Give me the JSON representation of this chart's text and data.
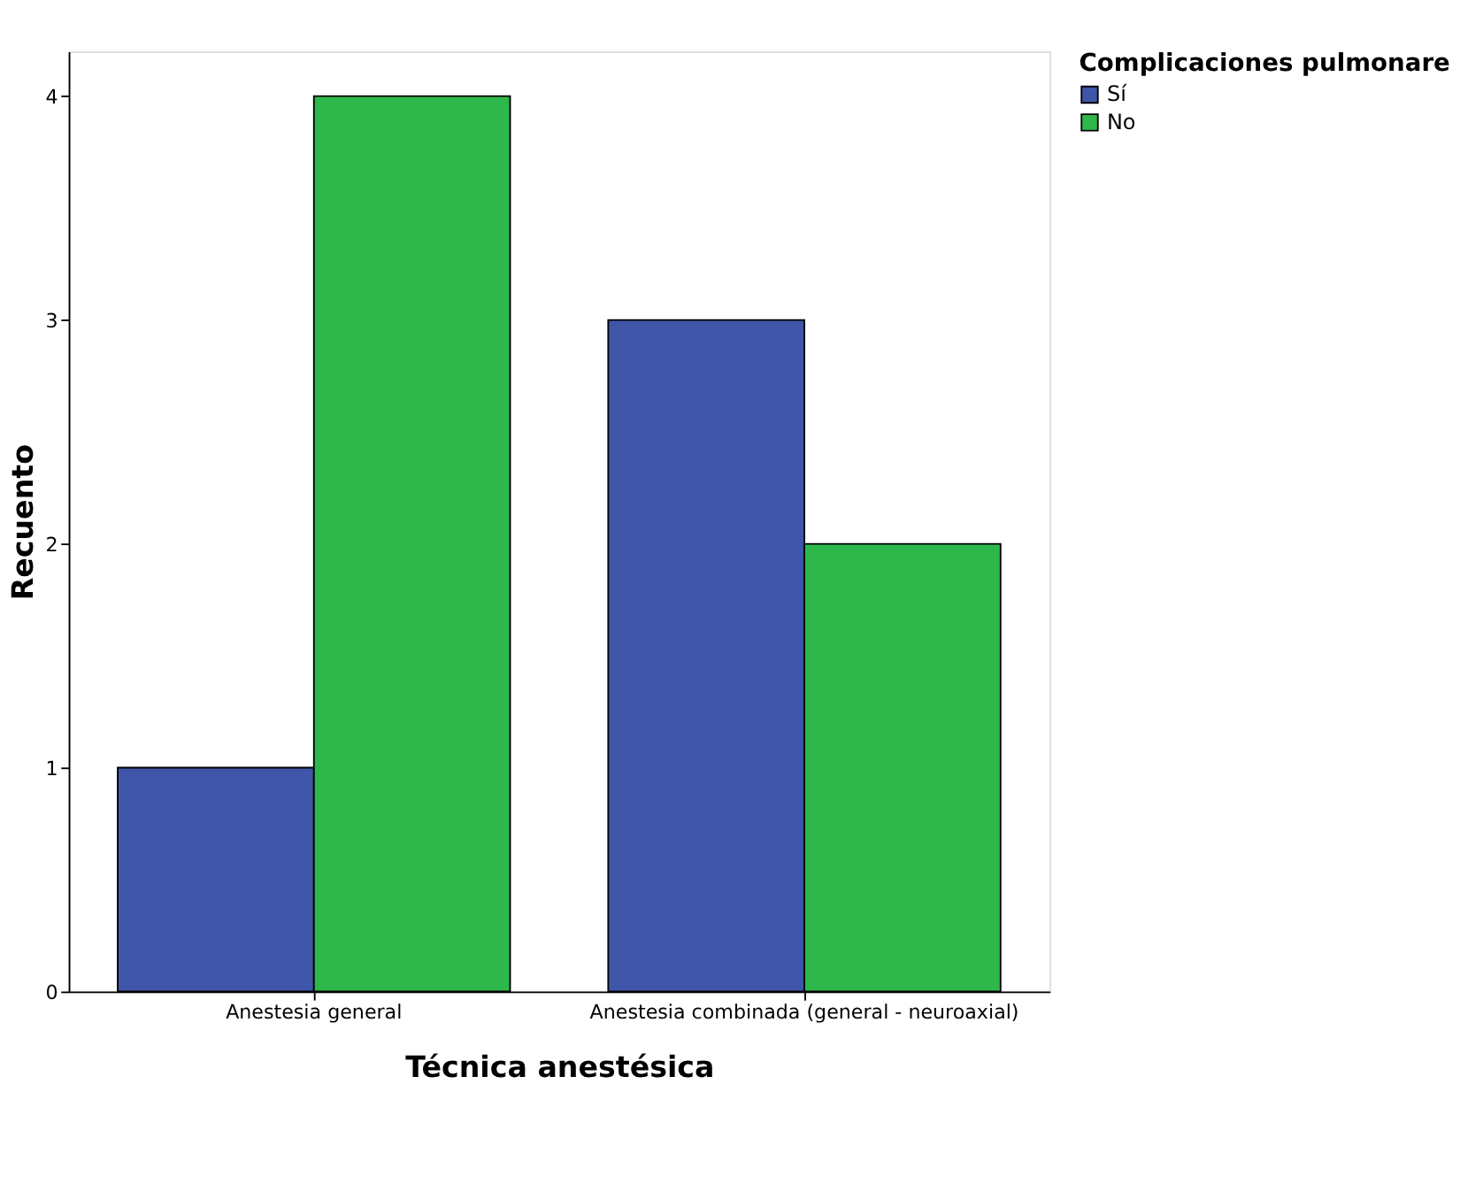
{
  "chart_data": {
    "type": "bar",
    "xlabel": "Técnica anestésica",
    "ylabel": "Recuento",
    "legend_title": "Complicaciones pulmonare",
    "categories": [
      "Anestesia general",
      "Anestesia combinada (general - neuroaxial)"
    ],
    "series": [
      {
        "name": "Sí",
        "color": "#3f56a8",
        "values": [
          1,
          3
        ]
      },
      {
        "name": "No",
        "color": "#2eb84b",
        "values": [
          4,
          2
        ]
      }
    ],
    "ylim": [
      0,
      4.2
    ],
    "yticks": [
      0,
      1,
      2,
      3,
      4
    ],
    "grid": false,
    "legend": "top right"
  }
}
